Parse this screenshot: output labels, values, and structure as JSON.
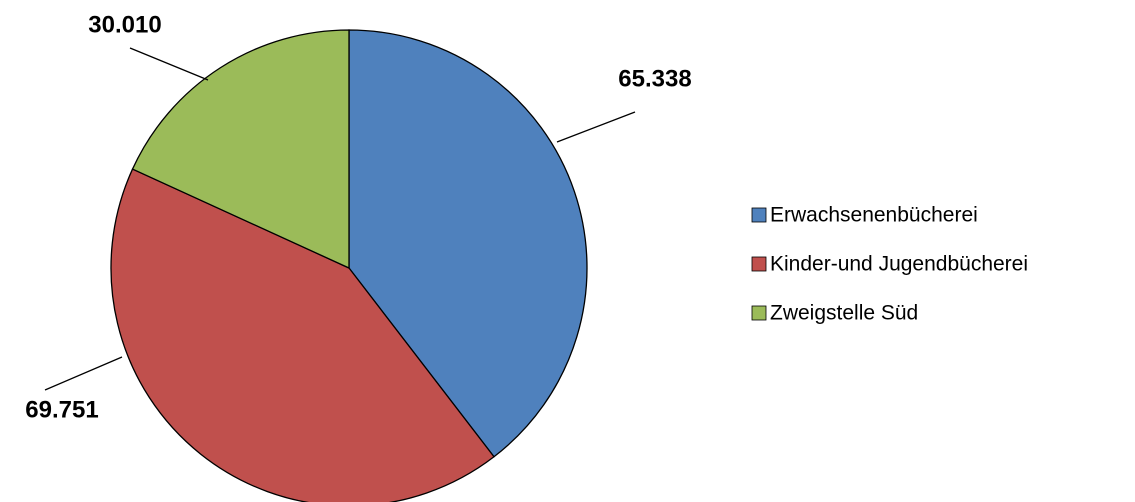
{
  "chart_data": {
    "type": "pie",
    "categories": [
      "Erwachsenenbücherei",
      "Kinder-und Jugendbücherei",
      "Zweigstelle Süd"
    ],
    "values": [
      65338,
      69751,
      30010
    ],
    "value_labels": [
      "65.338",
      "69.751",
      "30.010"
    ],
    "colors": [
      "#4f81bd",
      "#c0504d",
      "#9bbb59"
    ],
    "legend": "right"
  }
}
